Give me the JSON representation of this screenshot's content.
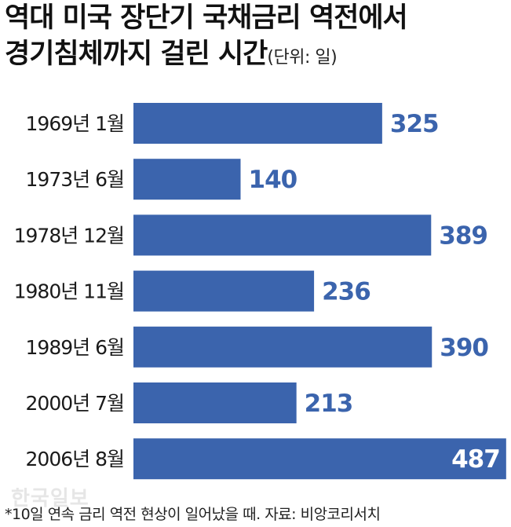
{
  "title": {
    "line1": "역대 미국 장단기 국채금리 역전에서",
    "line2": "경기침체까지 걸린 시간",
    "unit": "(단위: 일)"
  },
  "chart_data": {
    "type": "bar",
    "orientation": "horizontal",
    "categories": [
      "1969년 1월",
      "1973년 6월",
      "1978년 12월",
      "1980년 11월",
      "1989년 6월",
      "2000년 7월",
      "2006년 8월"
    ],
    "values": [
      325,
      140,
      389,
      236,
      390,
      213,
      487
    ],
    "title": "역대 미국 장단기 국채금리 역전에서 경기침체까지 걸린 시간",
    "unit": "(단위: 일)",
    "xlabel": "",
    "ylabel": "",
    "grid": false,
    "bar_color": "#3b64ad",
    "value_label_color": "#3b64ad",
    "inner_label_color": "#ffffff"
  },
  "footnote": "*10일 연속 금리 역전 현상이 일어났을 때. 자료: 비앙코리서치",
  "watermark": "한국일보"
}
